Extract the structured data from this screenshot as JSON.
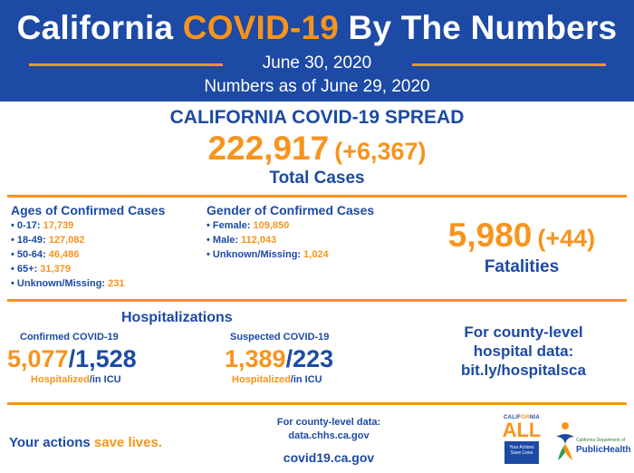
{
  "header": {
    "title_pre": "California ",
    "title_hl": "COVID-19",
    "title_post": " By The Numbers",
    "date": "June 30, 2020",
    "as_of": "Numbers as of June 29, 2020"
  },
  "spread": {
    "title": "CALIFORNIA COVID-19 SPREAD",
    "total": "222,917",
    "delta": "(+6,367)",
    "label": "Total Cases"
  },
  "ages": {
    "title": "Ages of Confirmed Cases",
    "items": [
      {
        "label": "• 0-17: ",
        "value": "17,739"
      },
      {
        "label": "• 18-49: ",
        "value": "127,082"
      },
      {
        "label": "• 50-64: ",
        "value": "46,486"
      },
      {
        "label": "• 65+: ",
        "value": "31,379"
      },
      {
        "label": "• Unknown/Missing: ",
        "value": "231"
      }
    ]
  },
  "gender": {
    "title": "Gender of Confirmed Cases",
    "items": [
      {
        "label": "• Female: ",
        "value": "109,850"
      },
      {
        "label": "• Male: ",
        "value": "112,043"
      },
      {
        "label": "• Unknown/Missing: ",
        "value": "1,024"
      }
    ]
  },
  "fatalities": {
    "value": "5,980",
    "delta": "(+44)",
    "label": "Fatalities"
  },
  "hospitalizations": {
    "title": "Hospitalizations",
    "confirmed": {
      "label": "Confirmed COVID-19",
      "hospitalized": "5,077",
      "sep": "/",
      "icu": "1,528",
      "sub_a": "Hospitalized",
      "sub_b": "/in ICU"
    },
    "suspected": {
      "label": "Suspected COVID-19",
      "hospitalized": "1,389",
      "sep": "/",
      "icu": "223",
      "sub_a": "Hospitalized",
      "sub_b": "/in ICU"
    },
    "county_line1": "For county-level",
    "county_line2": "hospital data:",
    "county_link": "bit.ly/hospitalsca"
  },
  "footer": {
    "actions_pre": "Your actions ",
    "actions_hl": "save lives.",
    "county_data_line1": "For county-level data:",
    "county_data_line2": "data.chhs.ca.gov",
    "site": "covid19.ca.gov",
    "logo_all_top_a": "CALIF",
    "logo_all_top_b": "OR",
    "logo_all_top_c": "NIA",
    "logo_all_big": "ALL",
    "logo_all_box": "Your Actions Save Lives",
    "logo_ph_small": "California Department of",
    "logo_ph_big": "PublicHealth"
  },
  "colors": {
    "primary": "#1c4aa5",
    "accent": "#f7941d"
  }
}
